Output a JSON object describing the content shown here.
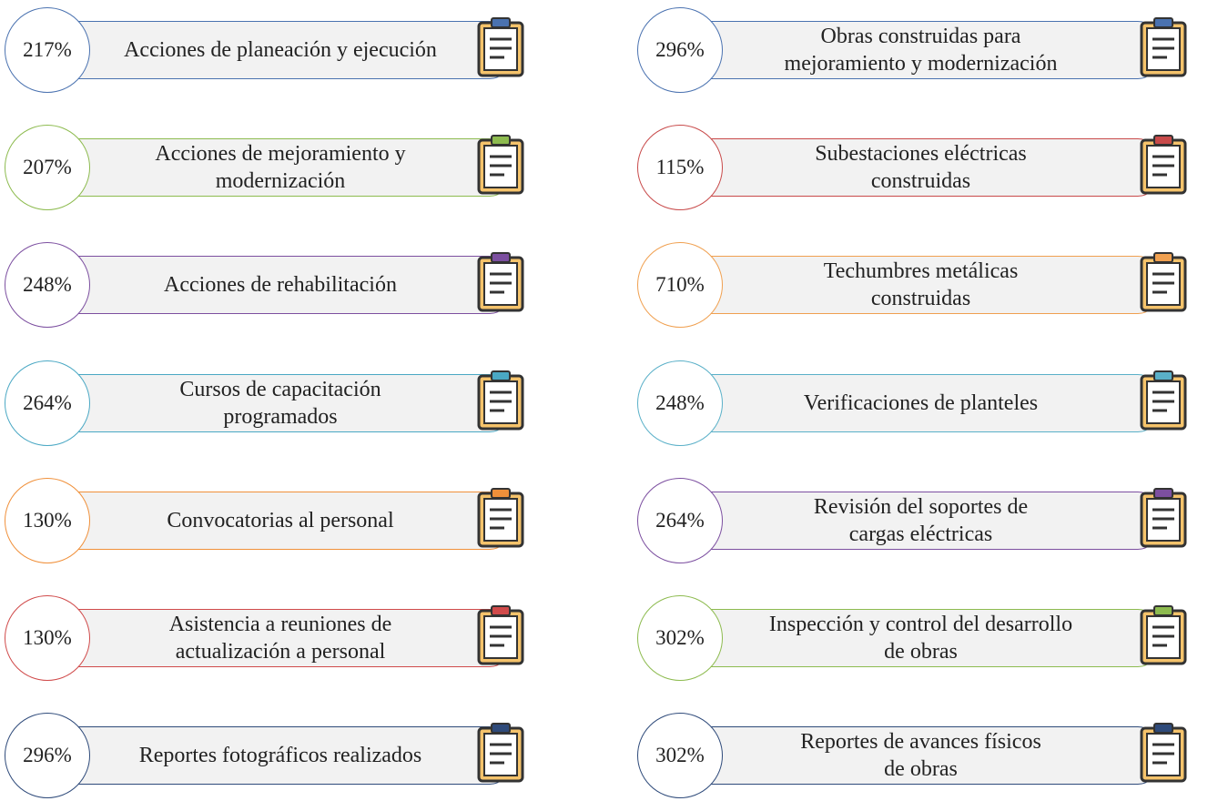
{
  "columns": [
    {
      "items": [
        {
          "value": "217%",
          "label": "Acciones de planeación y ejecución",
          "color": "#4a72b0"
        },
        {
          "value": "207%",
          "label": "Acciones de mejoramiento y\nmodernización",
          "color": "#8dbb4f"
        },
        {
          "value": "248%",
          "label": "Acciones de rehabilitación",
          "color": "#7c4fa0"
        },
        {
          "value": "264%",
          "label": "Cursos de capacitación\nprogramados",
          "color": "#4aa8c4"
        },
        {
          "value": "130%",
          "label": "Convocatorias al personal",
          "color": "#f0903a"
        },
        {
          "value": "130%",
          "label": "Asistencia a reuniones de\nactualización a personal",
          "color": "#d04a4a"
        },
        {
          "value": "296%",
          "label": "Reportes fotográficos realizados",
          "color": "#2e4a7a"
        }
      ]
    },
    {
      "items": [
        {
          "value": "296%",
          "label": "Obras construidas para\nmejoramiento y modernización",
          "color": "#4a72b0"
        },
        {
          "value": "115%",
          "label": "Subestaciones eléctricas\nconstruidas",
          "color": "#c84a4a"
        },
        {
          "value": "710%",
          "label": "Techumbres metálicas\nconstruidas",
          "color": "#f0a050"
        },
        {
          "value": "248%",
          "label": "Verificaciones de planteles",
          "color": "#5ab0c8"
        },
        {
          "value": "264%",
          "label": "Revisión del soportes de\ncargas eléctricas",
          "color": "#7c4fa0"
        },
        {
          "value": "302%",
          "label": "Inspección y control del desarrollo\nde obras",
          "color": "#8dbb4f"
        },
        {
          "value": "302%",
          "label": "Reportes de avances físicos\nde obras",
          "color": "#2e4a7a"
        }
      ]
    }
  ]
}
